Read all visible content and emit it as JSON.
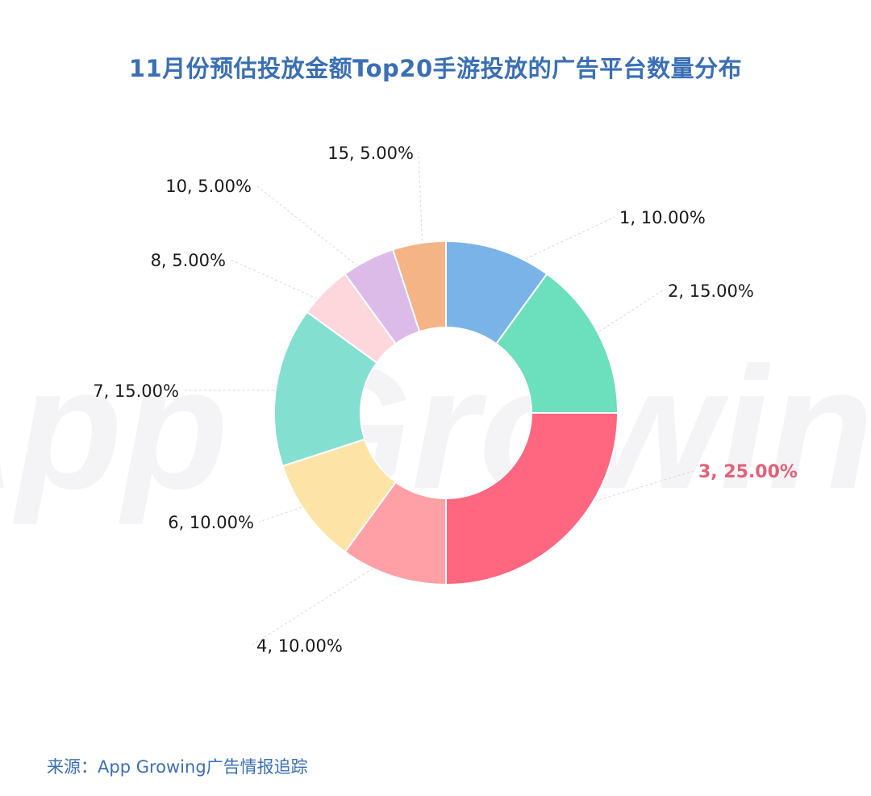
{
  "title": "11月份预估投放金额Top20手游投放的广告平台数量分布",
  "source": "来源：App Growing广告情报追踪",
  "watermark": "App Growing",
  "chart_data": {
    "type": "pie",
    "subtype": "donut",
    "title": "11月份预估投放金额Top20手游投放的广告平台数量分布",
    "slices": [
      {
        "category": "1",
        "percent": 10.0,
        "color": "#7ab3e8",
        "label": "1, 10.00%"
      },
      {
        "category": "2",
        "percent": 15.0,
        "color": "#6cdfbd",
        "label": "2, 15.00%"
      },
      {
        "category": "3",
        "percent": 25.0,
        "color": "#ff6680",
        "label": "3, 25.00%",
        "highlight": true
      },
      {
        "category": "4",
        "percent": 10.0,
        "color": "#ffa0a7",
        "label": "4, 10.00%"
      },
      {
        "category": "6",
        "percent": 10.0,
        "color": "#fde4a6",
        "label": "6, 10.00%"
      },
      {
        "category": "7",
        "percent": 15.0,
        "color": "#83e0d1",
        "label": "7, 15.00%"
      },
      {
        "category": "8",
        "percent": 5.0,
        "color": "#fdd7dc",
        "label": "8, 5.00%"
      },
      {
        "category": "10",
        "percent": 5.0,
        "color": "#ddbbe9",
        "label": "10, 5.00%"
      },
      {
        "category": "15",
        "percent": 5.0,
        "color": "#f4b486",
        "label": "15, 5.00%"
      }
    ],
    "highlight_color": "#e5607a",
    "label_color": "#1a1a1a",
    "legend": "none"
  }
}
